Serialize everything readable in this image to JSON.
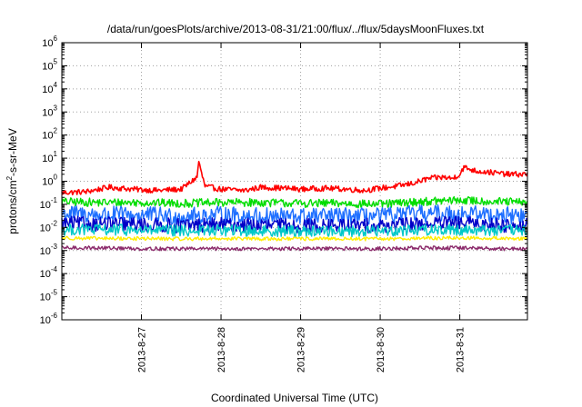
{
  "chart_data": {
    "type": "line",
    "title": "/data/run/goesPlots/archive/2013-08-31/21:00/flux/../flux/5daysMoonFluxes.txt",
    "xlabel": "Coordinated Universal Time (UTC)",
    "ylabel": {
      "prefix": "protons/cm",
      "sup": "2",
      "suffix": "-s-sr-MeV"
    },
    "yscale": "log",
    "ylim_exponent": [
      -6,
      6
    ],
    "y_ticks": [
      {
        "base": "10",
        "exp": "-6"
      },
      {
        "base": "10",
        "exp": "-5"
      },
      {
        "base": "10",
        "exp": "-4"
      },
      {
        "base": "10",
        "exp": "-3"
      },
      {
        "base": "10",
        "exp": "-2"
      },
      {
        "base": "10",
        "exp": "-1"
      },
      {
        "base": "10",
        "exp": "0"
      },
      {
        "base": "10",
        "exp": "1"
      },
      {
        "base": "10",
        "exp": "2"
      },
      {
        "base": "10",
        "exp": "3"
      },
      {
        "base": "10",
        "exp": "4"
      },
      {
        "base": "10",
        "exp": "5"
      },
      {
        "base": "10",
        "exp": "6"
      }
    ],
    "x_ticks": [
      "2013-8-27",
      "2013-8-28",
      "2013-8-29",
      "2013-8-30",
      "2013-8-31"
    ],
    "xlim_days": [
      26.0,
      31.85
    ],
    "grid": true,
    "series": [
      {
        "color": "#ff0000",
        "points": [
          [
            26.0,
            0.32
          ],
          [
            26.3,
            0.35
          ],
          [
            26.6,
            0.55
          ],
          [
            26.9,
            0.45
          ],
          [
            27.2,
            0.4
          ],
          [
            27.5,
            0.45
          ],
          [
            27.7,
            1.5
          ],
          [
            27.72,
            8
          ],
          [
            27.75,
            2.5
          ],
          [
            27.8,
            0.6
          ],
          [
            28.0,
            0.45
          ],
          [
            28.3,
            0.4
          ],
          [
            28.5,
            0.55
          ],
          [
            28.8,
            0.5
          ],
          [
            29.0,
            0.45
          ],
          [
            29.3,
            0.5
          ],
          [
            29.6,
            0.45
          ],
          [
            29.8,
            0.4
          ],
          [
            30.0,
            0.5
          ],
          [
            30.2,
            0.6
          ],
          [
            30.4,
            0.8
          ],
          [
            30.5,
            1.0
          ],
          [
            30.6,
            1.3
          ],
          [
            30.8,
            1.5
          ],
          [
            30.9,
            1.3
          ],
          [
            31.0,
            2.0
          ],
          [
            31.05,
            4.0
          ],
          [
            31.2,
            2.8
          ],
          [
            31.4,
            2.4
          ],
          [
            31.6,
            2.0
          ],
          [
            31.85,
            2.0
          ]
        ],
        "amp": 0.12
      },
      {
        "color": "#00dd00",
        "points": [
          [
            26.0,
            0.13
          ],
          [
            26.5,
            0.12
          ],
          [
            27.0,
            0.12
          ],
          [
            27.5,
            0.11
          ],
          [
            28.0,
            0.12
          ],
          [
            28.5,
            0.12
          ],
          [
            29.0,
            0.11
          ],
          [
            29.5,
            0.11
          ],
          [
            30.0,
            0.1
          ],
          [
            30.5,
            0.13
          ],
          [
            31.0,
            0.15
          ],
          [
            31.5,
            0.13
          ],
          [
            31.85,
            0.12
          ]
        ],
        "amp": 0.18
      },
      {
        "color": "#1e6fff",
        "points": [
          [
            26.0,
            0.04
          ],
          [
            26.5,
            0.035
          ],
          [
            27.0,
            0.035
          ],
          [
            27.5,
            0.03
          ],
          [
            28.0,
            0.035
          ],
          [
            28.5,
            0.03
          ],
          [
            29.0,
            0.03
          ],
          [
            29.5,
            0.03
          ],
          [
            30.0,
            0.03
          ],
          [
            30.5,
            0.04
          ],
          [
            31.0,
            0.04
          ],
          [
            31.5,
            0.035
          ],
          [
            31.85,
            0.03
          ]
        ],
        "amp": 0.38
      },
      {
        "color": "#0000c8",
        "points": [
          [
            26.0,
            0.015
          ],
          [
            26.5,
            0.014
          ],
          [
            27.0,
            0.013
          ],
          [
            27.5,
            0.012
          ],
          [
            28.0,
            0.013
          ],
          [
            28.5,
            0.012
          ],
          [
            29.0,
            0.012
          ],
          [
            29.5,
            0.012
          ],
          [
            30.0,
            0.012
          ],
          [
            30.5,
            0.014
          ],
          [
            31.0,
            0.015
          ],
          [
            31.5,
            0.013
          ],
          [
            31.85,
            0.012
          ]
        ],
        "amp": 0.32
      },
      {
        "color": "#00c8c8",
        "points": [
          [
            26.0,
            0.008
          ],
          [
            26.5,
            0.008
          ],
          [
            27.0,
            0.0075
          ],
          [
            27.5,
            0.007
          ],
          [
            28.0,
            0.0075
          ],
          [
            28.5,
            0.007
          ],
          [
            29.0,
            0.007
          ],
          [
            29.5,
            0.007
          ],
          [
            30.0,
            0.007
          ],
          [
            30.5,
            0.008
          ],
          [
            31.0,
            0.008
          ],
          [
            31.5,
            0.0075
          ],
          [
            31.85,
            0.007
          ]
        ],
        "amp": 0.25
      },
      {
        "color": "#ffee00",
        "points": [
          [
            26.0,
            0.0035
          ],
          [
            26.5,
            0.0033
          ],
          [
            27.0,
            0.0033
          ],
          [
            27.5,
            0.0032
          ],
          [
            28.0,
            0.0033
          ],
          [
            28.5,
            0.0032
          ],
          [
            29.0,
            0.0032
          ],
          [
            29.5,
            0.0032
          ],
          [
            30.0,
            0.0032
          ],
          [
            30.5,
            0.0034
          ],
          [
            31.0,
            0.0035
          ],
          [
            31.5,
            0.0034
          ],
          [
            31.85,
            0.0033
          ]
        ],
        "amp": 0.08
      },
      {
        "color": "#8b2a6b",
        "points": [
          [
            26.0,
            0.0013
          ],
          [
            26.5,
            0.0013
          ],
          [
            27.0,
            0.0012
          ],
          [
            27.5,
            0.0012
          ],
          [
            28.0,
            0.0012
          ],
          [
            28.5,
            0.0012
          ],
          [
            29.0,
            0.0012
          ],
          [
            29.5,
            0.0012
          ],
          [
            30.0,
            0.0012
          ],
          [
            30.5,
            0.0013
          ],
          [
            31.0,
            0.0013
          ],
          [
            31.5,
            0.0012
          ],
          [
            31.85,
            0.0012
          ]
        ],
        "amp": 0.08
      }
    ]
  }
}
